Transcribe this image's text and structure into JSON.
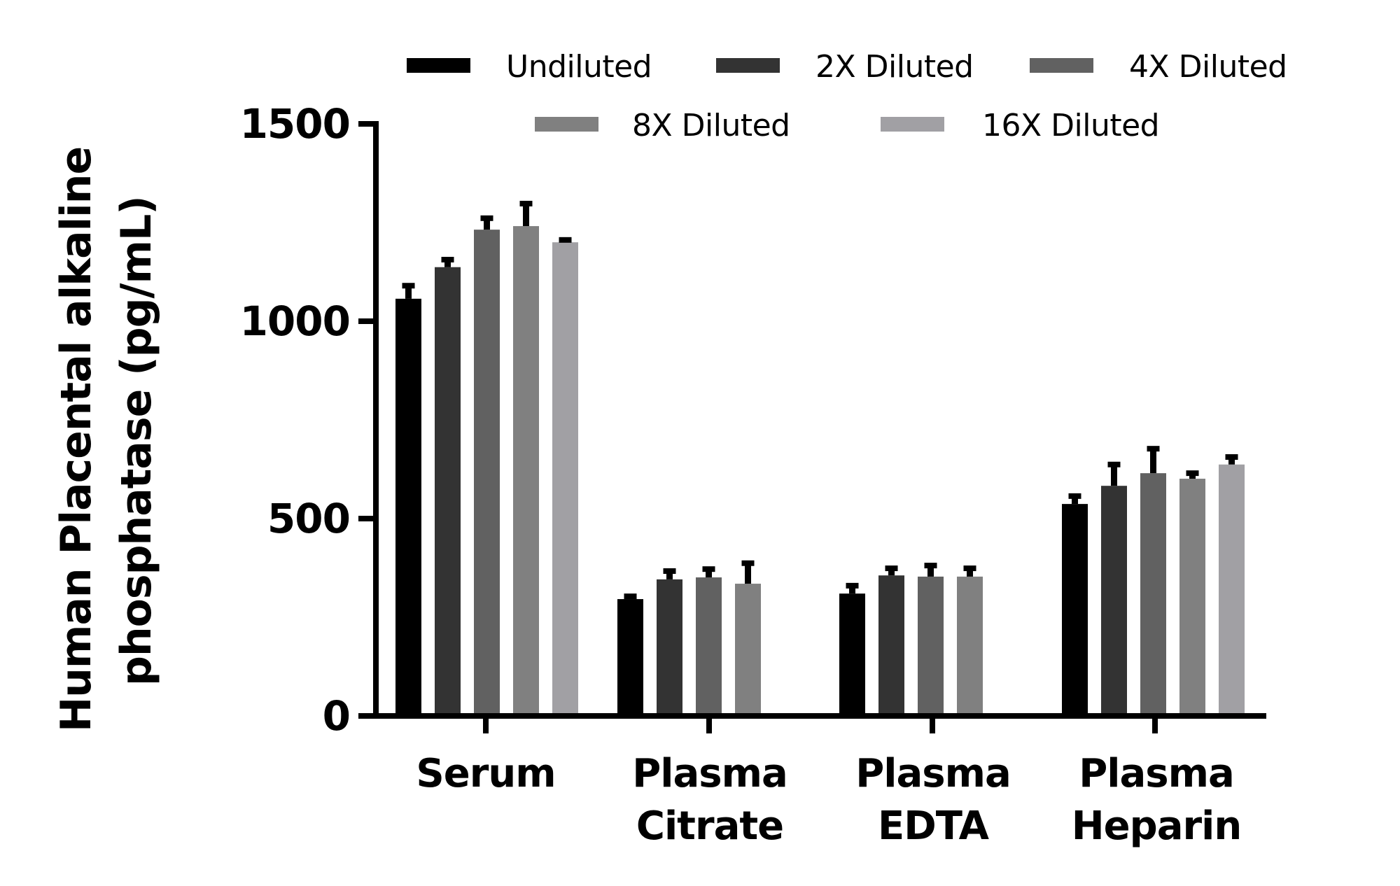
{
  "chart_data": {
    "type": "bar",
    "title": "",
    "xlabel": "",
    "ylabel": "Human Placental alkaline phosphatase (pg/mL)",
    "ylabel_lines": [
      "Human Placental alkaline",
      "phosphatase (pg/mL)"
    ],
    "ylim": [
      0,
      1500
    ],
    "yticks": [
      0,
      500,
      1000,
      1500
    ],
    "grid": false,
    "legend_position": "top",
    "categories": [
      "Serum",
      "Plasma Citrate",
      "Plasma EDTA",
      "Plasma Heparin"
    ],
    "category_lines": [
      [
        "Serum"
      ],
      [
        "Plasma",
        "Citrate"
      ],
      [
        "Plasma",
        "EDTA"
      ],
      [
        "Plasma",
        "Heparin"
      ]
    ],
    "series": [
      {
        "name": "Undiluted",
        "color": "#000000",
        "values": [
          1057,
          296,
          310,
          537
        ],
        "errors": [
          33,
          7,
          20,
          20
        ]
      },
      {
        "name": "2X Diluted",
        "color": "#333333",
        "values": [
          1137,
          346,
          356,
          583
        ],
        "errors": [
          19,
          21,
          18,
          54
        ]
      },
      {
        "name": "4X Diluted",
        "color": "#616161",
        "values": [
          1232,
          351,
          353,
          615
        ],
        "errors": [
          29,
          21,
          28,
          62
        ]
      },
      {
        "name": "8X Diluted",
        "color": "#808080",
        "values": [
          1241,
          335,
          353,
          601
        ],
        "errors": [
          57,
          52,
          21,
          14
        ]
      },
      {
        "name": "16X Diluted",
        "color": "#A1A0A4",
        "values": [
          1200,
          null,
          null,
          637
        ],
        "errors": [
          6,
          null,
          null,
          19
        ]
      }
    ]
  },
  "legend": {
    "items": [
      {
        "label": "Undiluted",
        "color": "#000000"
      },
      {
        "label": "2X Diluted",
        "color": "#333333"
      },
      {
        "label": "4X Diluted",
        "color": "#616161"
      },
      {
        "label": "8X Diluted",
        "color": "#808080"
      },
      {
        "label": "16X Diluted",
        "color": "#A1A0A4"
      }
    ]
  },
  "axes": {
    "y_title_line1": "Human Placental alkaline",
    "y_title_line2": "phosphatase (pg/mL)",
    "y_tick_labels": [
      "0",
      "500",
      "1000",
      "1500"
    ],
    "x_labels": [
      {
        "line1": "Serum",
        "line2": ""
      },
      {
        "line1": "Plasma",
        "line2": "Citrate"
      },
      {
        "line1": "Plasma",
        "line2": "EDTA"
      },
      {
        "line1": "Plasma",
        "line2": "Heparin"
      }
    ]
  }
}
